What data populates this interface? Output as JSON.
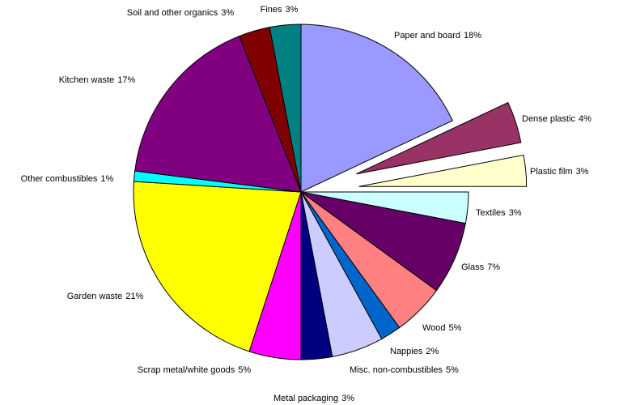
{
  "chart_data": {
    "type": "pie",
    "categories": [
      "Paper and board",
      "Dense plastic",
      "Plastic film",
      "Textiles",
      "Glass",
      "Wood",
      "Nappies",
      "Misc. non-combustibles",
      "Metal packaging",
      "Scrap metal/white goods",
      "Garden waste",
      "Other combustibles",
      "Kitchen waste",
      "Soil and other organics",
      "Fines"
    ],
    "values": [
      18,
      4,
      3,
      3,
      7,
      5,
      2,
      5,
      3,
      5,
      21,
      1,
      17,
      3,
      3
    ],
    "value_labels": [
      "18%",
      "4%",
      "3%",
      "3%",
      "7%",
      "5%",
      "2%",
      "5%",
      "3%",
      "5%",
      "21%",
      "1%",
      "17%",
      "3%",
      "3%"
    ],
    "colors": [
      "#9999ff",
      "#993366",
      "#ffffcc",
      "#ccffff",
      "#660066",
      "#ff8080",
      "#0066cc",
      "#ccccff",
      "#000080",
      "#ff00ff",
      "#ffff00",
      "#00ffff",
      "#800080",
      "#800000",
      "#008080"
    ],
    "exploded": [
      1,
      2
    ]
  }
}
